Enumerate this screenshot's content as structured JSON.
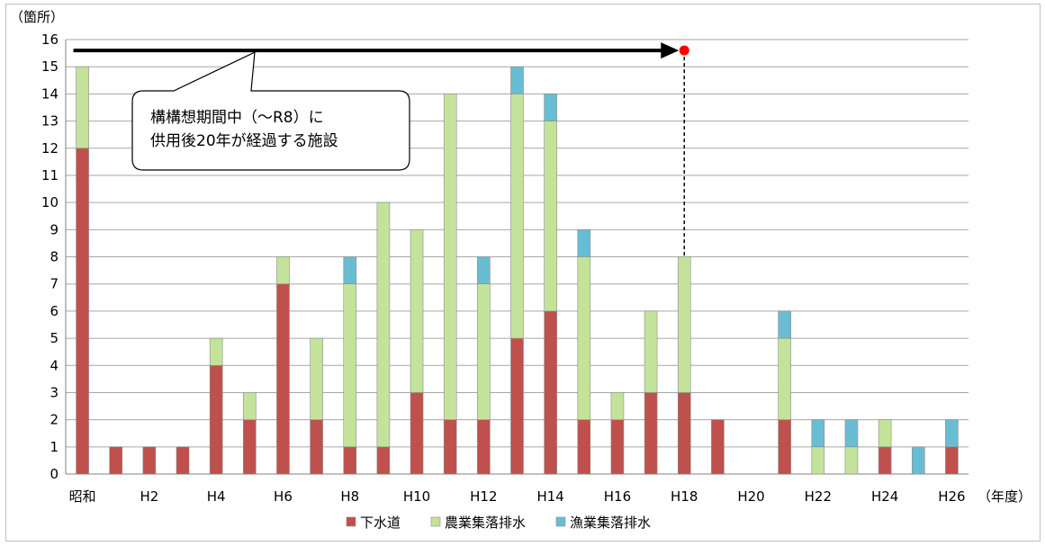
{
  "chart_data": {
    "type": "bar",
    "stacked": true,
    "y_unit_label": "（箇所）",
    "x_unit_label": "（年度）",
    "ylim": [
      0,
      16
    ],
    "yticks": [
      0,
      1,
      2,
      3,
      4,
      5,
      6,
      7,
      8,
      9,
      10,
      11,
      12,
      13,
      14,
      15,
      16
    ],
    "grid": true,
    "legend_placement": "bottom",
    "categories": [
      "昭和",
      "H元",
      "H2",
      "H3",
      "H4",
      "H5",
      "H6",
      "H7",
      "H8",
      "H9",
      "H10",
      "H11",
      "H12",
      "H13",
      "H14",
      "H15",
      "H16",
      "H17",
      "H18",
      "H19",
      "H20",
      "H21",
      "H22",
      "H23",
      "H24",
      "H25",
      "H26"
    ],
    "category_tick_labels": [
      "昭和",
      "",
      "H2",
      "",
      "H4",
      "",
      "H6",
      "",
      "H8",
      "",
      "H10",
      "",
      "H12",
      "",
      "H14",
      "",
      "H16",
      "",
      "H18",
      "",
      "H20",
      "",
      "H22",
      "",
      "H24",
      "",
      "H26"
    ],
    "series": [
      {
        "name": "下水道",
        "color": "#c0504d",
        "values": [
          12,
          1,
          1,
          1,
          4,
          2,
          7,
          2,
          1,
          1,
          3,
          2,
          2,
          5,
          6,
          2,
          2,
          3,
          3,
          2,
          0,
          2,
          0,
          0,
          1,
          0,
          1
        ]
      },
      {
        "name": "農業集落排水",
        "color": "#c3e39b",
        "values": [
          3,
          0,
          0,
          0,
          1,
          1,
          1,
          3,
          6,
          9,
          6,
          12,
          5,
          9,
          7,
          6,
          1,
          3,
          5,
          0,
          0,
          3,
          1,
          1,
          1,
          0,
          0
        ]
      },
      {
        "name": "漁業集落排水",
        "color": "#69bdd2",
        "values": [
          0,
          0,
          0,
          0,
          0,
          0,
          0,
          0,
          1,
          0,
          0,
          0,
          1,
          1,
          1,
          1,
          0,
          0,
          0,
          0,
          0,
          1,
          1,
          1,
          0,
          1,
          1
        ]
      }
    ],
    "annotation": {
      "text_lines": [
        "構構想期間中（～R8）に",
        "供用後20年が経過する施設"
      ],
      "arrow_y_value": 15.6,
      "arrow_end_category": "H18",
      "marker_color": "#ff0000"
    }
  }
}
